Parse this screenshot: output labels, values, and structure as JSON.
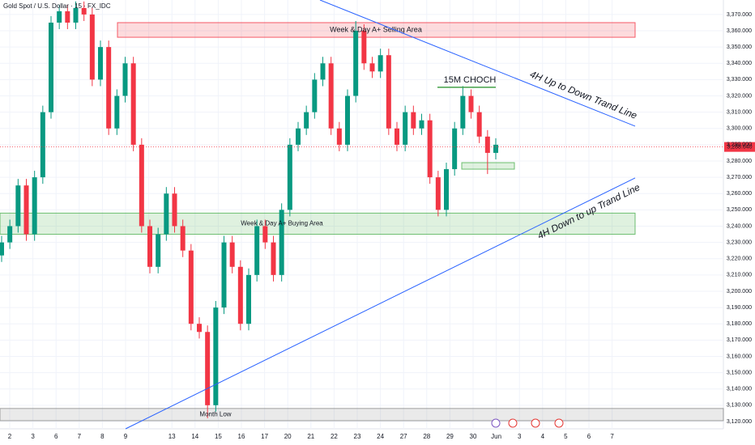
{
  "chart_data": {
    "type": "candlestick",
    "title": "Gold Spot / U.S. Dollar · 15 · FX_IDC",
    "categories": [
      "2",
      "3",
      "6",
      "7",
      "8",
      "9",
      null,
      "13",
      "14",
      "15",
      "16",
      "17",
      "20",
      "21",
      "22",
      "23",
      "24",
      "27",
      "28",
      "29",
      "30",
      "Jun",
      "3",
      "4",
      "5",
      "6",
      "7"
    ],
    "up_color": "#089981",
    "down_color": "#f23645",
    "candles": [
      [
        3222,
        3234,
        3218,
        3230
      ],
      [
        3230,
        3244,
        3226,
        3240
      ],
      [
        3240,
        3269,
        3236,
        3265
      ],
      [
        3265,
        3269,
        3231,
        3235
      ],
      [
        3235,
        3274,
        3231,
        3270
      ],
      [
        3270,
        3314,
        3266,
        3310
      ],
      [
        3310,
        3369,
        3306,
        3365
      ],
      [
        3365,
        3376,
        3361,
        3372
      ],
      [
        3372,
        3376,
        3361,
        3365
      ],
      [
        3365,
        3378,
        3361,
        3374
      ],
      [
        3374,
        3378,
        3366,
        3370
      ],
      [
        3370,
        3374,
        3326,
        3330
      ],
      [
        3330,
        3354,
        3326,
        3350
      ],
      [
        3350,
        3354,
        3296,
        3300
      ],
      [
        3300,
        3324,
        3296,
        3320
      ],
      [
        3320,
        3344,
        3316,
        3340
      ],
      [
        3340,
        3344,
        3286,
        3290
      ],
      [
        3290,
        3294,
        3236,
        3240
      ],
      [
        3240,
        3244,
        3211,
        3215
      ],
      [
        3215,
        3239,
        3211,
        3235
      ],
      [
        3235,
        3264,
        3231,
        3260
      ],
      [
        3260,
        3264,
        3236,
        3240
      ],
      [
        3240,
        3244,
        3221,
        3225
      ],
      [
        3225,
        3229,
        3176,
        3180
      ],
      [
        3180,
        3184,
        3171,
        3175
      ],
      [
        3175,
        3179,
        3122,
        3130
      ],
      [
        3130,
        3194,
        3126,
        3190
      ],
      [
        3190,
        3234,
        3186,
        3230
      ],
      [
        3230,
        3234,
        3211,
        3215
      ],
      [
        3215,
        3219,
        3176,
        3180
      ],
      [
        3180,
        3214,
        3176,
        3210
      ],
      [
        3210,
        3244,
        3206,
        3240
      ],
      [
        3240,
        3244,
        3226,
        3230
      ],
      [
        3230,
        3234,
        3206,
        3210
      ],
      [
        3210,
        3254,
        3206,
        3250
      ],
      [
        3250,
        3294,
        3246,
        3290
      ],
      [
        3290,
        3304,
        3286,
        3300
      ],
      [
        3300,
        3314,
        3296,
        3310
      ],
      [
        3310,
        3334,
        3306,
        3330
      ],
      [
        3330,
        3344,
        3326,
        3340
      ],
      [
        3340,
        3344,
        3296,
        3300
      ],
      [
        3300,
        3304,
        3286,
        3290
      ],
      [
        3290,
        3324,
        3286,
        3320
      ],
      [
        3320,
        3366,
        3316,
        3360
      ],
      [
        3360,
        3364,
        3336,
        3340
      ],
      [
        3340,
        3344,
        3331,
        3335
      ],
      [
        3335,
        3349,
        3331,
        3345
      ],
      [
        3345,
        3349,
        3296,
        3300
      ],
      [
        3300,
        3304,
        3286,
        3290
      ],
      [
        3290,
        3314,
        3286,
        3310
      ],
      [
        3310,
        3314,
        3296,
        3300
      ],
      [
        3300,
        3309,
        3296,
        3305
      ],
      [
        3305,
        3309,
        3266,
        3270
      ],
      [
        3270,
        3274,
        3246,
        3250
      ],
      [
        3250,
        3279,
        3246,
        3275
      ],
      [
        3275,
        3304,
        3271,
        3300
      ],
      [
        3300,
        3326,
        3296,
        3320
      ],
      [
        3320,
        3324,
        3306,
        3310
      ],
      [
        3310,
        3314,
        3291,
        3295
      ],
      [
        3295,
        3299,
        3272,
        3285
      ],
      [
        3285,
        3294,
        3281,
        3290
      ]
    ],
    "ylim": [
      3115.5,
      3378.9
    ],
    "yticks": [
      {
        "value": 3120,
        "label": "3,120.000"
      },
      {
        "value": 3130,
        "label": "3,130.000"
      },
      {
        "value": 3140,
        "label": "3,140.000"
      },
      {
        "value": 3150,
        "label": "3,150.000"
      },
      {
        "value": 3160,
        "label": "3,160.000"
      },
      {
        "value": 3170,
        "label": "3,170.000"
      },
      {
        "value": 3180,
        "label": "3,180.000"
      },
      {
        "value": 3190,
        "label": "3,190.000"
      },
      {
        "value": 3200,
        "label": "3,200.000"
      },
      {
        "value": 3210,
        "label": "3,210.000"
      },
      {
        "value": 3220,
        "label": "3,220.000"
      },
      {
        "value": 3230,
        "label": "3,230.000"
      },
      {
        "value": 3240,
        "label": "3,240.000"
      },
      {
        "value": 3250,
        "label": "3,250.000"
      },
      {
        "value": 3260,
        "label": "3,260.000"
      },
      {
        "value": 3270,
        "label": "3,270.000"
      },
      {
        "value": 3280,
        "label": "3,280.000"
      },
      {
        "value": 3290,
        "label": "3,290.000"
      },
      {
        "value": 3300,
        "label": "3,300.000"
      },
      {
        "value": 3310,
        "label": "3,310.000"
      },
      {
        "value": 3320,
        "label": "3,320.000"
      },
      {
        "value": 3330,
        "label": "3,330.000"
      },
      {
        "value": 3340,
        "label": "3,340.000"
      },
      {
        "value": 3350,
        "label": "3,350.000"
      },
      {
        "value": 3360,
        "label": "3,360.000"
      },
      {
        "value": 3370,
        "label": "3,370.000"
      }
    ],
    "last_price": {
      "value": 3288.64,
      "label": "3,288.640"
    },
    "zones": [
      {
        "label": "Week & Day A+ Selling Area",
        "low": 3356,
        "high": 3365,
        "color": "#f23645"
      },
      {
        "label": "Week & Day A+ Buying Area",
        "low": 3235,
        "high": 3248,
        "color": "#4caf50"
      },
      {
        "label": "Month Low",
        "low": 3120.5,
        "high": 3128,
        "color": "#888888"
      },
      {
        "low": 3275,
        "high": 3279,
        "color": "#4caf50"
      }
    ],
    "choch": {
      "label": "15M CHOCH",
      "value": 3325.3
    },
    "trend_lines": [
      {
        "label": "4H Up to Down Trand Line",
        "from": 3378.9,
        "to": 3301.4,
        "label_color": "#e53935"
      },
      {
        "label": "4H Down to up Trand Line",
        "from": 3115.5,
        "to": 3269.6,
        "label_color": "#43a047"
      }
    ]
  }
}
